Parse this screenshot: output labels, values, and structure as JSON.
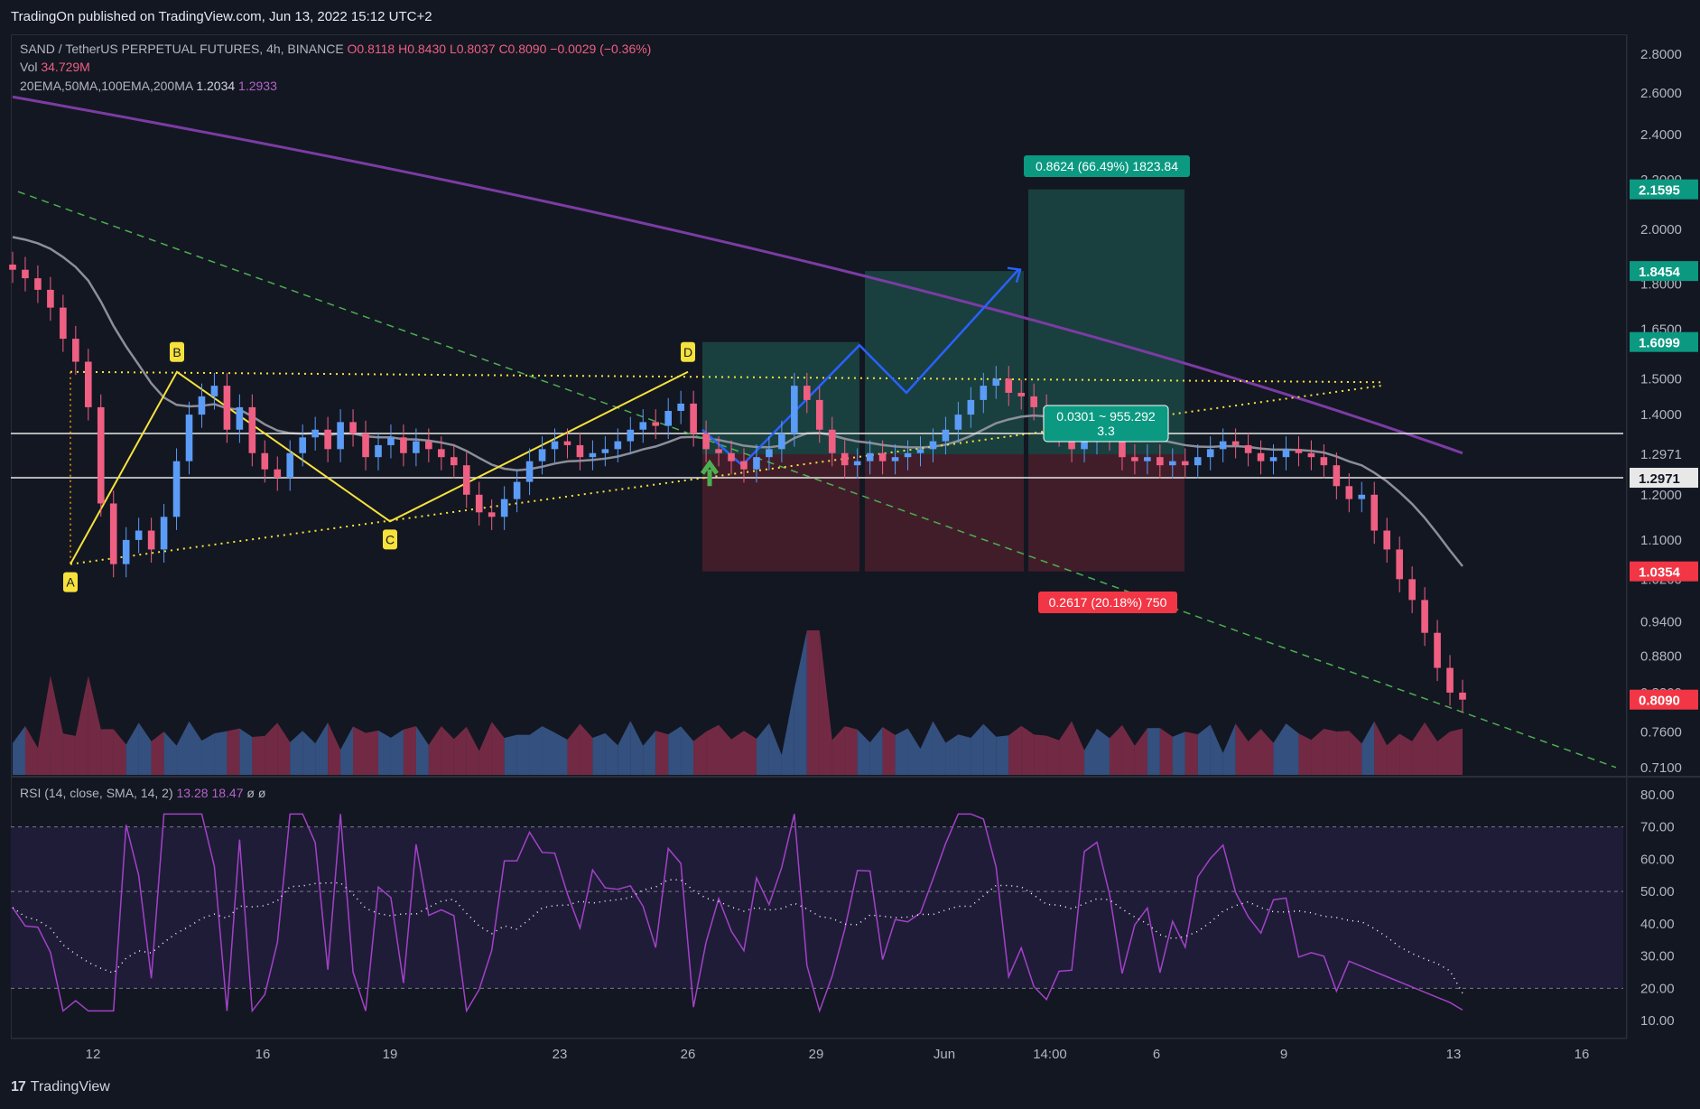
{
  "header": {
    "published": "TradingOn published on TradingView.com, Jun 13, 2022 15:12 UTC+2"
  },
  "legend": {
    "symbol": "SAND / TetherUS PERPETUAL FUTURES, 4h, BINANCE",
    "o": "O0.8118",
    "h": "H0.8430",
    "l": "L0.8037",
    "c": "C0.8090",
    "chg": "−0.0029 (−0.36%)",
    "vol_label": "Vol",
    "vol_value": "34.729M",
    "ma_label": "20EMA,50MA,100EMA,200MA",
    "ma_v1": "1.2034",
    "ma_v2": "1.2933",
    "rsi_label": "RSI (14, close, SMA, 14, 2)",
    "rsi_v1": "13.28",
    "rsi_v2": "18.47",
    "rsi_v3": "ø",
    "rsi_v4": "ø"
  },
  "footer": {
    "brand": "TradingView"
  },
  "colors": {
    "bg": "#131722",
    "up": "#5b9cf6",
    "down": "#ef5f82",
    "ma200": "#7b3ca3",
    "ma50": "#8c8f99",
    "yellow": "#f7e23c",
    "green_dash": "#4caf50",
    "profit": "#14505033",
    "loss": "#5a1e2a",
    "rsi": "#a242c7",
    "rsi_band": "#1f1c38",
    "tag_green": "#0b9981",
    "tag_red": "#f23645"
  },
  "chart_data": {
    "type": "candlestick",
    "price_axis": {
      "ticks": [
        "2.8000",
        "2.6000",
        "2.4000",
        "2.2000",
        "2.0000",
        "1.8000",
        "1.6500",
        "1.5000",
        "1.4000",
        "1.2971",
        "1.2000",
        "1.1000",
        "1.0200",
        "0.9400",
        "0.8800",
        "0.8200",
        "0.7600",
        "0.7100"
      ],
      "values": [
        2.8,
        2.6,
        2.4,
        2.2,
        2.0,
        1.8,
        1.65,
        1.5,
        1.4,
        1.2971,
        1.2,
        1.1,
        1.02,
        0.94,
        0.88,
        0.82,
        0.76,
        0.71
      ],
      "scale": "log"
    },
    "price_tags": [
      {
        "label": "2.1595",
        "value": 2.1595,
        "color": "green"
      },
      {
        "label": "1.8454",
        "value": 1.8454,
        "color": "green"
      },
      {
        "label": "1.6099",
        "value": 1.6099,
        "color": "green"
      },
      {
        "label": "1.2971",
        "value": 1.2971,
        "color": "white"
      },
      {
        "label": "1.0354",
        "value": 1.0354,
        "color": "red"
      },
      {
        "label": "0.8090",
        "value": 0.809,
        "color": "pink"
      }
    ],
    "time_axis": [
      "12",
      "16",
      "19",
      "23",
      "26",
      "29",
      "Jun",
      "14:00",
      "6",
      "9",
      "13",
      "16"
    ],
    "rsi_axis": [
      "80.00",
      "70.00",
      "60.00",
      "50.00",
      "40.00",
      "30.00",
      "20.00",
      "10.00"
    ],
    "pattern_labels": [
      "A",
      "B",
      "C",
      "D"
    ],
    "annotations": {
      "target": "0.8624 (66.49%) 1823.84",
      "stop": "0.2617 (20.18%) 750",
      "rr_line1": "0.0301 ~ 955.292",
      "rr_line2": "3.3"
    },
    "series": [
      {
        "name": "SAND / TetherUS",
        "close": [
          1.85,
          1.82,
          1.78,
          1.72,
          1.62,
          1.55,
          1.42,
          1.18,
          1.05,
          1.1,
          1.12,
          1.08,
          1.15,
          1.28,
          1.4,
          1.45,
          1.48,
          1.36,
          1.42,
          1.3,
          1.26,
          1.24,
          1.3,
          1.34,
          1.36,
          1.31,
          1.38,
          1.35,
          1.29,
          1.32,
          1.34,
          1.3,
          1.33,
          1.31,
          1.29,
          1.27,
          1.2,
          1.16,
          1.15,
          1.19,
          1.23,
          1.28,
          1.31,
          1.33,
          1.32,
          1.29,
          1.3,
          1.31,
          1.33,
          1.36,
          1.38,
          1.37,
          1.41,
          1.43,
          1.35,
          1.31,
          1.3,
          1.28,
          1.26,
          1.29,
          1.31,
          1.35,
          1.48,
          1.44,
          1.36,
          1.3,
          1.27,
          1.28,
          1.3,
          1.28,
          1.29,
          1.3,
          1.31,
          1.33,
          1.36,
          1.4,
          1.44,
          1.48,
          1.5,
          1.46,
          1.45,
          1.42,
          1.38,
          1.35,
          1.31,
          1.33,
          1.35,
          1.34,
          1.29,
          1.28,
          1.29,
          1.27,
          1.28,
          1.27,
          1.29,
          1.31,
          1.33,
          1.32,
          1.3,
          1.28,
          1.29,
          1.31,
          1.3,
          1.29,
          1.27,
          1.22,
          1.19,
          1.2,
          1.12,
          1.08,
          1.02,
          0.98,
          0.92,
          0.86,
          0.82,
          0.809
        ]
      }
    ]
  }
}
